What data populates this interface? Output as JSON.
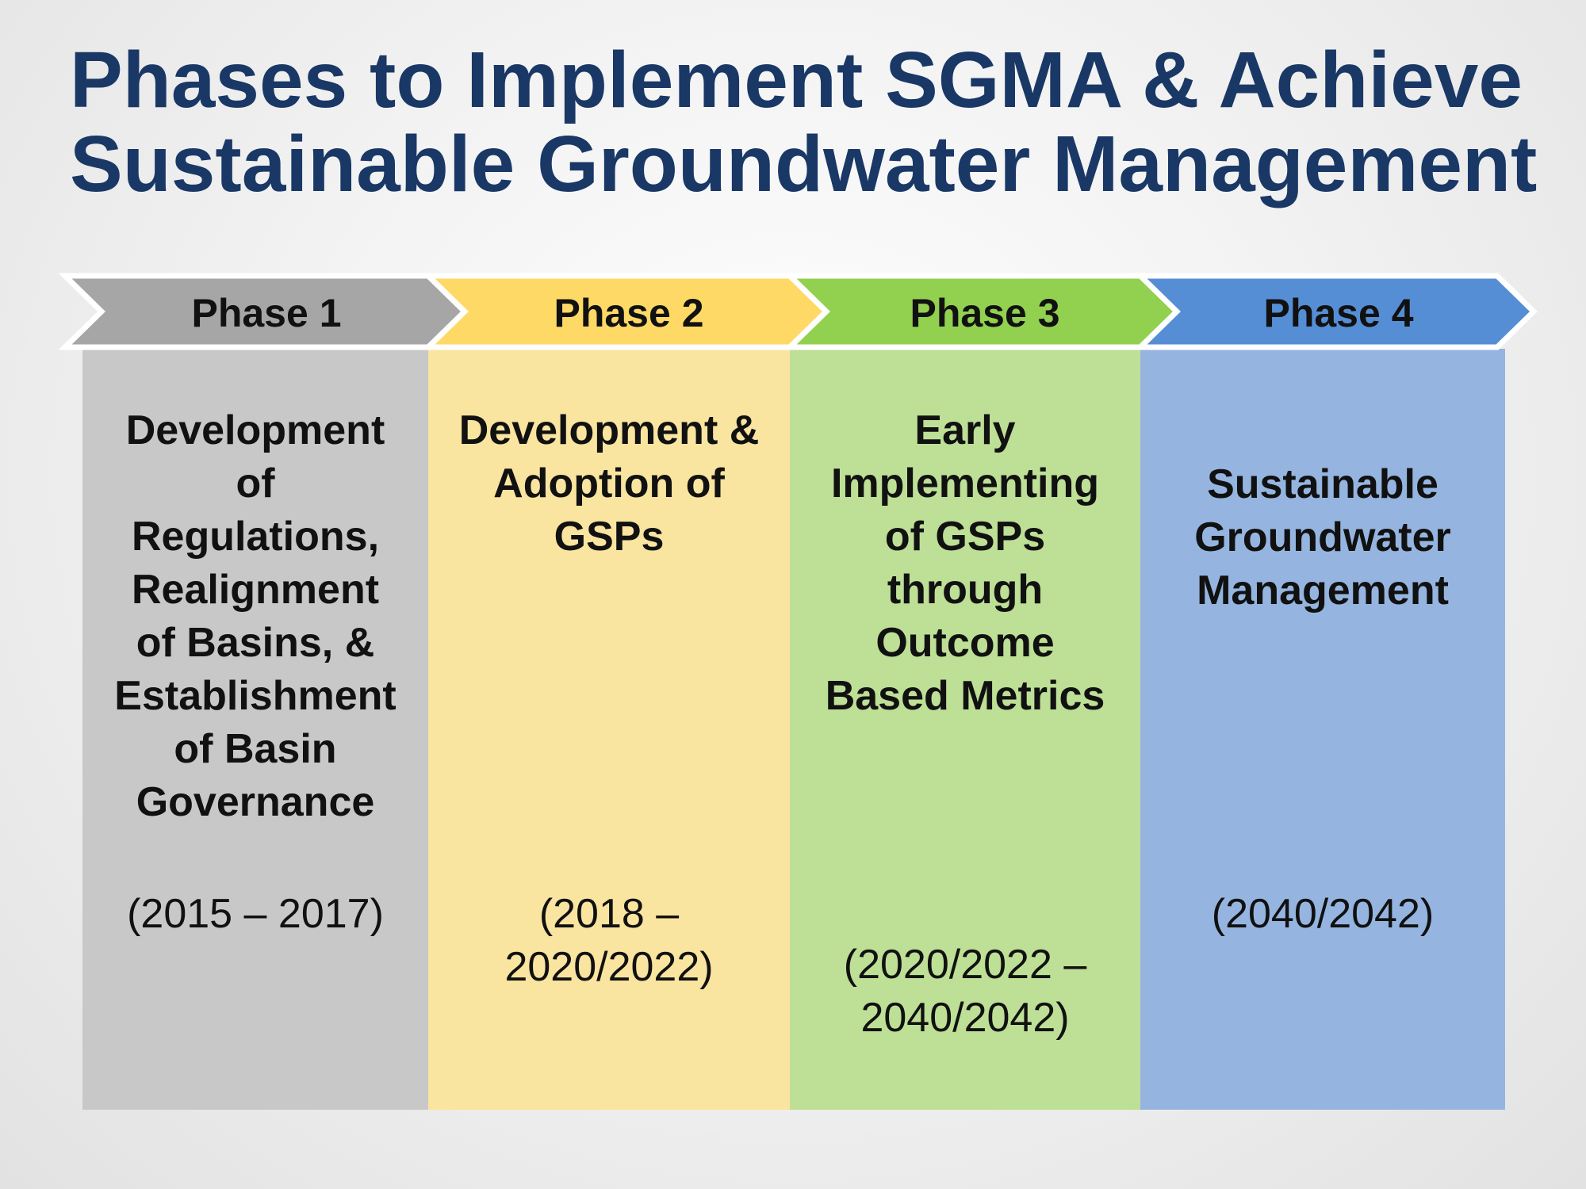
{
  "title": {
    "line1": "Phases to Implement SGMA & Achieve",
    "line2": "Sustainable Groundwater Management"
  },
  "phases": [
    {
      "label": "Phase 1",
      "chevron_color": "#a6a6a6",
      "column_color": "#c8c8c8",
      "description_lines": [
        "Development",
        "of",
        "Regulations,",
        "Realignment",
        "of Basins, &",
        "Establishment",
        "of Basin",
        "Governance"
      ],
      "years_lines": [
        "(2015 – 2017)"
      ]
    },
    {
      "label": "Phase 2",
      "chevron_color": "#ffd966",
      "column_color": "#f9e4a0",
      "description_lines": [
        "Development &",
        "Adoption of",
        "GSPs"
      ],
      "years_lines": [
        "(2018 –",
        "2020/2022)"
      ]
    },
    {
      "label": "Phase 3",
      "chevron_color": "#92d050",
      "column_color": "#bddf96",
      "description_lines": [
        "Early",
        "Implementing",
        "of GSPs",
        "through",
        "Outcome",
        "Based Metrics"
      ],
      "years_lines": [
        "(2020/2022 –",
        "2040/2042)"
      ]
    },
    {
      "label": "Phase 4",
      "chevron_color": "#558ed5",
      "column_color": "#95b5e0",
      "description_lines": [
        "Sustainable",
        "Groundwater",
        "Management"
      ],
      "years_lines": [
        "(2040/2042)"
      ]
    }
  ]
}
